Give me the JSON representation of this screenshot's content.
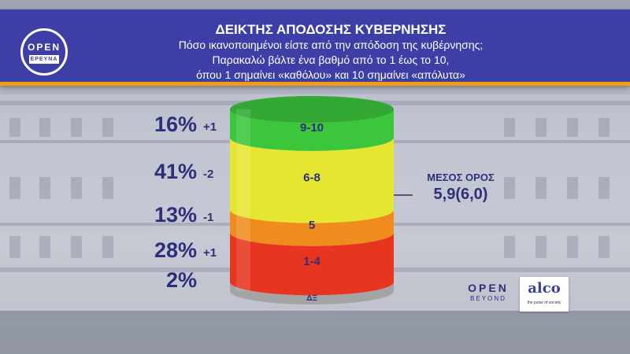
{
  "header": {
    "title": "ΔΕΙΚΤΗΣ ΑΠΟΔΟΣΗΣ ΚΥΒΕΡΝΗΣΗΣ",
    "subtitle_lines": [
      "Πόσο ικανοποιημένοι είστε από την απόδοση της κυβέρνησης;",
      "Παρακαλώ βάλτε ένα βαθμό από το 1 έως το 10,",
      "όπου 1 σημαίνει «καθόλου» και 10 σημαίνει «απόλυτα»"
    ],
    "logo": {
      "open": "OPEN",
      "erevna": "ΕΡΕΥΝΑ"
    }
  },
  "chart_data": {
    "type": "stacked-cylinder",
    "title": "ΔΕΙΚΤΗΣ ΑΠΟΔΟΣΗΣ ΚΥΒΕΡΝΗΣΗΣ",
    "unit": "%",
    "segments": [
      {
        "label": "9-10",
        "value": 16,
        "value_label": "16%",
        "change": "+1",
        "color": "#3cc63c"
      },
      {
        "label": "6-8",
        "value": 41,
        "value_label": "41%",
        "change": "-2",
        "color": "#e6e631"
      },
      {
        "label": "5",
        "value": 13,
        "value_label": "13%",
        "change": "-1",
        "color": "#f08c1e"
      },
      {
        "label": "1-4",
        "value": 28,
        "value_label": "28%",
        "change": "+1",
        "color": "#e8351f"
      },
      {
        "label": "ΔΞ",
        "value": 2,
        "value_label": "2%",
        "change": "",
        "color": "#a4a4a4"
      }
    ],
    "mean": {
      "label": "ΜΕΣΟΣ ΟΡΟΣ",
      "value": "5,9(6,0)"
    }
  },
  "footer": {
    "open_beyond": {
      "open": "OPEN",
      "beyond": "BEYOND"
    },
    "alco": {
      "name": "alco",
      "tagline": "the pulse of society"
    }
  }
}
